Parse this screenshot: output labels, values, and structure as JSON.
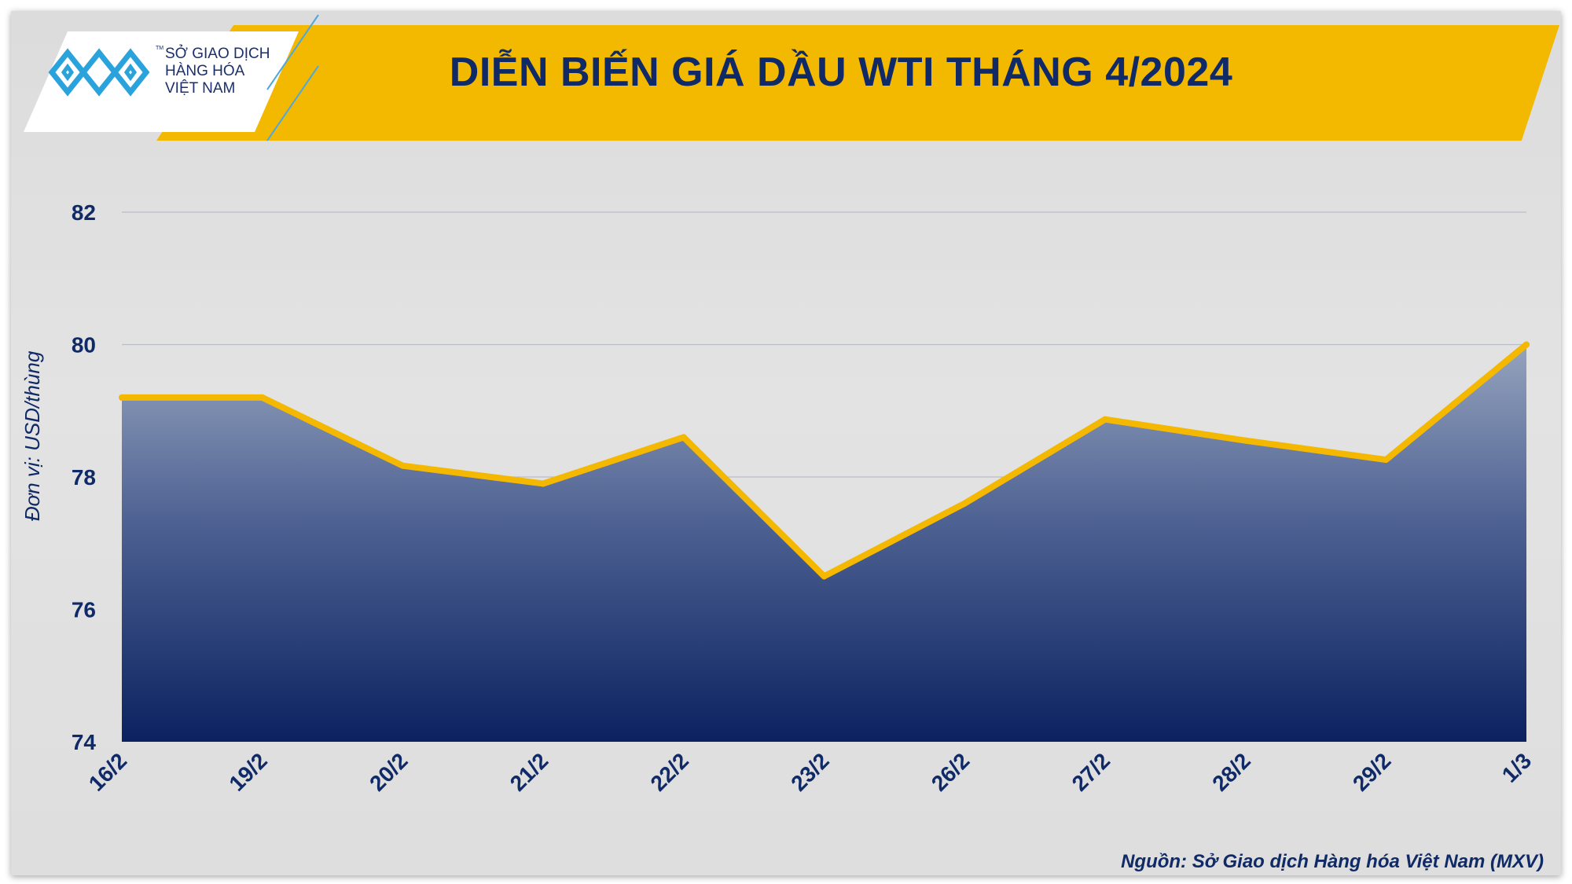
{
  "header": {
    "title": "DIỄN BIẾN GIÁ DẦU WTI THÁNG 4/2024",
    "logo_lines": [
      "SỞ GIAO DỊCH",
      "HÀNG HÓA",
      "VIỆT NAM"
    ],
    "logo_tm": "TM"
  },
  "footer": {
    "source": "Nguồn: Sở Giao dịch Hàng hóa Việt Nam (MXV)"
  },
  "colors": {
    "banner": "#f3b800",
    "title": "#0f2a66",
    "line": "#f5b800",
    "area_top": "#95a3bd",
    "area_bottom": "#0b2260"
  },
  "chart_data": {
    "type": "area",
    "ylabel": "Đơn vị: USD/thùng",
    "xlabel": "",
    "categories": [
      "16/2",
      "19/2",
      "20/2",
      "21/2",
      "22/2",
      "23/2",
      "26/2",
      "27/2",
      "28/2",
      "29/2",
      "1/3"
    ],
    "values": [
      79.2,
      79.2,
      78.17,
      77.9,
      78.6,
      76.5,
      77.6,
      78.87,
      78.55,
      78.26,
      80.0
    ],
    "yticks": [
      74,
      76,
      78,
      80,
      82
    ],
    "ylim": [
      74,
      82
    ],
    "grid": true,
    "legend": "none"
  }
}
